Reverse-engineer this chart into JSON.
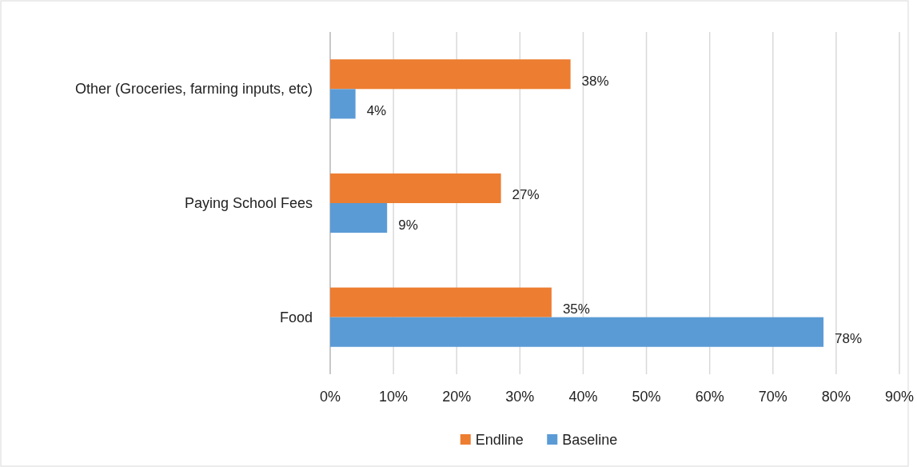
{
  "chart_data": {
    "type": "bar",
    "orientation": "horizontal",
    "categories": [
      "Other (Groceries, farming inputs, etc)",
      "Paying School Fees",
      "Food"
    ],
    "series": [
      {
        "name": "Endline",
        "color": "#ed7d31",
        "values": [
          38,
          27,
          35
        ],
        "value_labels": [
          "38%",
          "27%",
          "35%"
        ]
      },
      {
        "name": "Baseline",
        "color": "#5b9bd5",
        "values": [
          4,
          9,
          78
        ],
        "value_labels": [
          "4%",
          "9%",
          "78%"
        ]
      }
    ],
    "xlim": [
      0,
      90
    ],
    "xticks": [
      {
        "value": 0,
        "label": "0%"
      },
      {
        "value": 10,
        "label": "10%"
      },
      {
        "value": 20,
        "label": "20%"
      },
      {
        "value": 30,
        "label": "30%"
      },
      {
        "value": 40,
        "label": "40%"
      },
      {
        "value": 50,
        "label": "50%"
      },
      {
        "value": 60,
        "label": "60%"
      },
      {
        "value": 70,
        "label": "70%"
      },
      {
        "value": 80,
        "label": "80%"
      },
      {
        "value": 90,
        "label": "90%"
      }
    ],
    "grid": "x",
    "legend": "bottom"
  }
}
